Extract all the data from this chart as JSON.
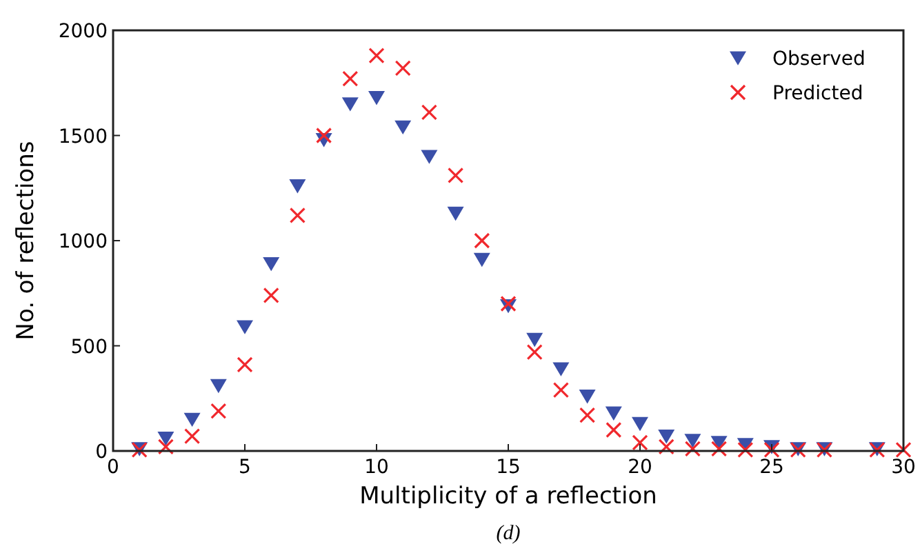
{
  "chart_data": {
    "type": "scatter",
    "xlabel": "Multiplicity of a reflection",
    "ylabel": "No. of reflections",
    "annotations": [
      "(d)"
    ],
    "xlim": [
      0,
      30
    ],
    "xticks": [
      0,
      5,
      10,
      15,
      20,
      25,
      30
    ],
    "ylim": [
      0,
      2000
    ],
    "yticks": [
      0,
      500,
      1000,
      1500,
      2000
    ],
    "grid": false,
    "legend": "top right",
    "series": [
      {
        "name": "Observed",
        "color": "#3a4fa8",
        "marker": "triangle",
        "x": [
          1,
          2,
          3,
          4,
          5,
          6,
          7,
          8,
          9,
          10,
          11,
          12,
          13,
          14,
          15,
          16,
          17,
          18,
          19,
          20,
          21,
          22,
          23,
          24,
          25,
          26,
          27,
          29
        ],
        "values": [
          10,
          60,
          150,
          310,
          590,
          890,
          1260,
          1480,
          1650,
          1680,
          1540,
          1400,
          1130,
          910,
          690,
          530,
          390,
          260,
          180,
          130,
          70,
          50,
          40,
          30,
          20,
          10,
          10,
          10
        ]
      },
      {
        "name": "Predicted",
        "color": "#f0282d",
        "marker": "cross",
        "x": [
          1,
          2,
          3,
          4,
          5,
          6,
          7,
          8,
          9,
          10,
          11,
          12,
          13,
          14,
          15,
          16,
          17,
          18,
          19,
          20,
          21,
          22,
          23,
          24,
          25,
          26,
          27,
          29,
          30
        ],
        "values": [
          5,
          20,
          70,
          190,
          410,
          740,
          1120,
          1500,
          1770,
          1880,
          1820,
          1610,
          1310,
          1000,
          700,
          470,
          290,
          170,
          100,
          40,
          20,
          10,
          10,
          5,
          5,
          5,
          5,
          5,
          5
        ]
      }
    ]
  }
}
